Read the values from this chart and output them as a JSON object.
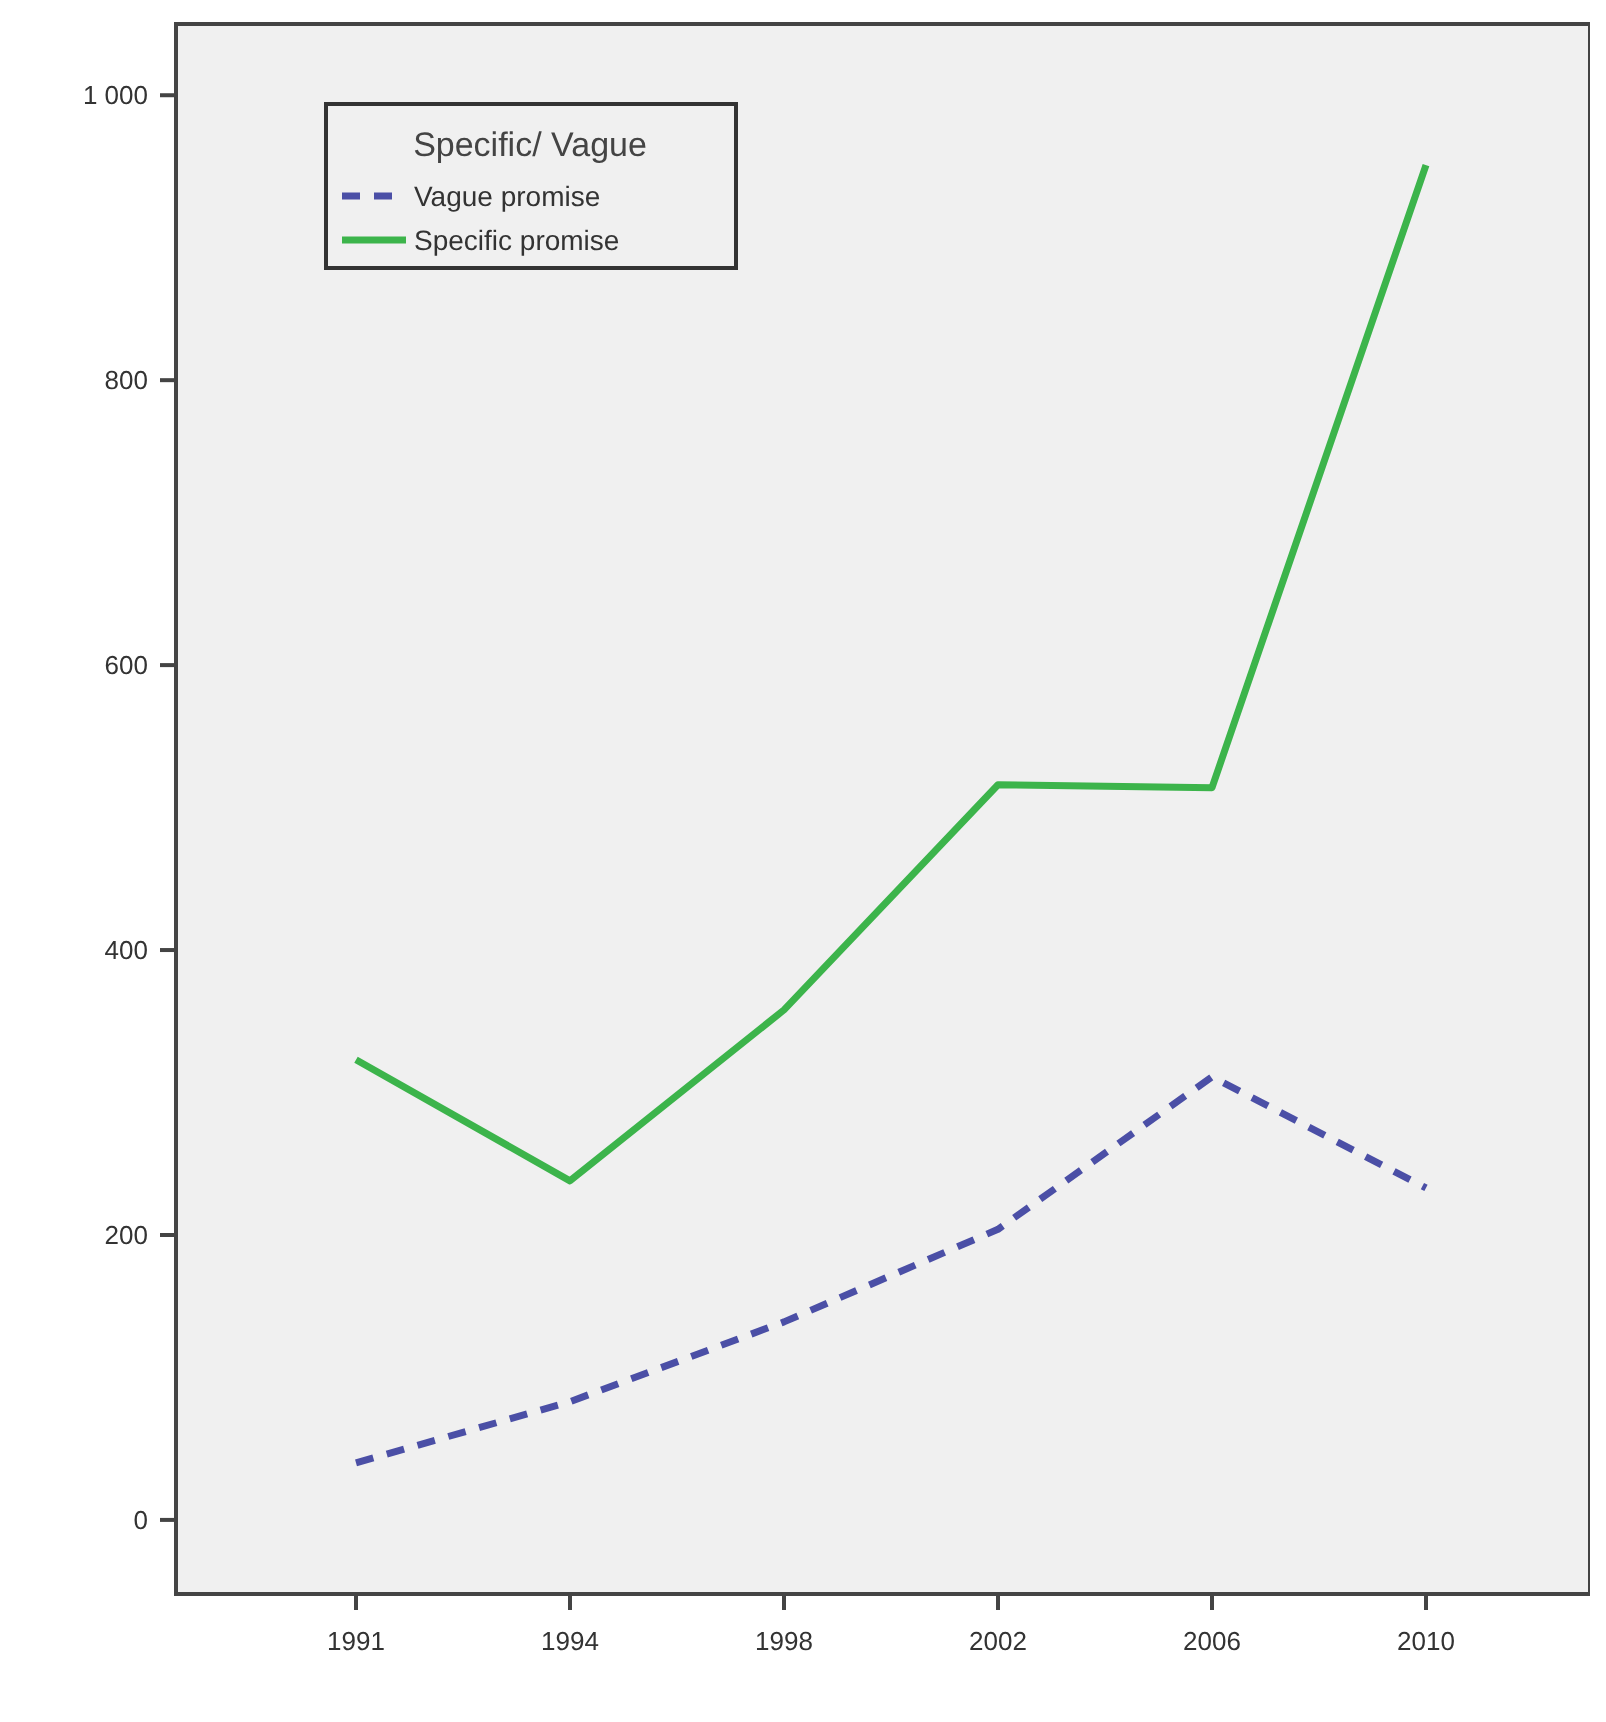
{
  "chart_data": {
    "type": "line",
    "categories": [
      "1991",
      "1994",
      "1998",
      "2002",
      "2006",
      "2010"
    ],
    "series": [
      {
        "name": "Vague promise",
        "color": "#4b4fa6",
        "line_style": "dashed",
        "values": [
          40,
          83,
          139,
          204,
          311,
          233
        ]
      },
      {
        "name": "Specific promise",
        "color": "#3cb44b",
        "line_style": "solid",
        "values": [
          323,
          238,
          358,
          516,
          514,
          951
        ]
      }
    ],
    "ylim": [
      -52,
      1050
    ],
    "yticks": [
      0,
      200,
      400,
      600,
      800,
      {
        "value": 1000,
        "label": "1 000"
      }
    ],
    "legend_title": "Specific/ Vague",
    "legend": "top left",
    "grid": false
  }
}
